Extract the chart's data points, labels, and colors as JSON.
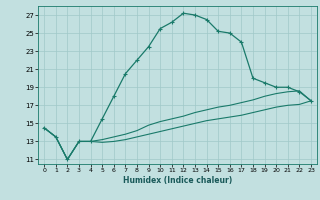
{
  "xlabel": "Humidex (Indice chaleur)",
  "background_color": "#c2e0e0",
  "grid_color": "#a0c8c8",
  "line_color": "#1a7a6a",
  "xlim": [
    -0.5,
    23.5
  ],
  "ylim": [
    10.5,
    28.0
  ],
  "xticks": [
    0,
    1,
    2,
    3,
    4,
    5,
    6,
    7,
    8,
    9,
    10,
    11,
    12,
    13,
    14,
    15,
    16,
    17,
    18,
    19,
    20,
    21,
    22,
    23
  ],
  "yticks": [
    11,
    13,
    15,
    17,
    19,
    21,
    23,
    25,
    27
  ],
  "curve1_x": [
    0,
    1,
    2,
    3,
    4,
    5,
    6,
    7,
    8,
    9,
    10,
    11,
    12,
    13,
    14,
    15,
    16,
    17,
    18,
    19,
    20,
    21,
    22,
    23
  ],
  "curve1_y": [
    14.5,
    13.5,
    11.0,
    13.0,
    13.0,
    15.5,
    18.0,
    20.5,
    22.0,
    23.5,
    25.5,
    26.2,
    27.2,
    27.0,
    26.5,
    25.2,
    25.0,
    24.0,
    20.0,
    19.5,
    19.0,
    19.0,
    18.5,
    17.5
  ],
  "curve2_x": [
    0,
    1,
    2,
    3,
    4,
    5,
    6,
    7,
    8,
    9,
    10,
    11,
    12,
    13,
    14,
    15,
    16,
    17,
    18,
    19,
    20,
    21,
    22,
    23
  ],
  "curve2_y": [
    14.5,
    13.5,
    11.0,
    13.0,
    13.0,
    13.2,
    13.5,
    13.8,
    14.2,
    14.8,
    15.2,
    15.5,
    15.8,
    16.2,
    16.5,
    16.8,
    17.0,
    17.3,
    17.6,
    18.0,
    18.3,
    18.5,
    18.6,
    17.5
  ],
  "curve3_x": [
    0,
    1,
    2,
    3,
    4,
    5,
    6,
    7,
    8,
    9,
    10,
    11,
    12,
    13,
    14,
    15,
    16,
    17,
    18,
    19,
    20,
    21,
    22,
    23
  ],
  "curve3_y": [
    14.5,
    13.5,
    11.0,
    13.0,
    13.0,
    12.9,
    13.0,
    13.2,
    13.5,
    13.8,
    14.1,
    14.4,
    14.7,
    15.0,
    15.3,
    15.5,
    15.7,
    15.9,
    16.2,
    16.5,
    16.8,
    17.0,
    17.1,
    17.5
  ]
}
